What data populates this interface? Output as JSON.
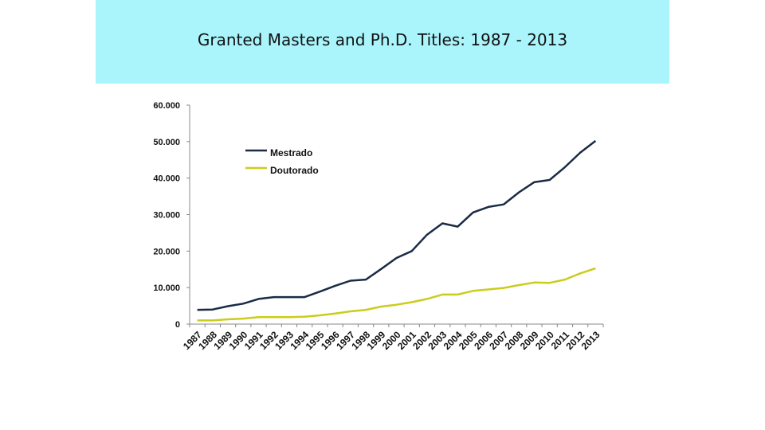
{
  "title": "Granted Masters and Ph.D. Titles: 1987 - 2013",
  "colors": {
    "title_band": "#aaf4fb",
    "mestrado": "#1a2b45",
    "doutorado": "#cccc1e",
    "axis": "#888888"
  },
  "chart_data": {
    "type": "line",
    "title": "Granted Masters and Ph.D. Titles: 1987 - 2013",
    "xlabel": "",
    "ylabel": "",
    "ylim": [
      0,
      60000
    ],
    "yticks": [
      0,
      10000,
      20000,
      30000,
      40000,
      50000,
      60000
    ],
    "ytick_labels": [
      "0",
      "10.000",
      "20.000",
      "30.000",
      "40.000",
      "50.000",
      "60.000"
    ],
    "grid": false,
    "legend_position": "top-left",
    "categories": [
      "1987",
      "1988",
      "1989",
      "1990",
      "1991",
      "1992",
      "1993",
      "1994",
      "1995",
      "1996",
      "1997",
      "1998",
      "1999",
      "2000",
      "2001",
      "2002",
      "2003",
      "2004",
      "2005",
      "2006",
      "2007",
      "2008",
      "2009",
      "2010",
      "2011",
      "2012",
      "2013"
    ],
    "series": [
      {
        "name": "Mestrado",
        "color": "#1a2b45",
        "values": [
          3900,
          4000,
          4900,
          5600,
          6900,
          7400,
          7400,
          7400,
          8900,
          10500,
          11900,
          12200,
          15100,
          18100,
          20000,
          24500,
          27600,
          26700,
          30600,
          32100,
          32800,
          36100,
          38900,
          39500,
          43000,
          47000,
          50200
        ]
      },
      {
        "name": "Doutorado",
        "color": "#cccc1e",
        "values": [
          1000,
          1000,
          1300,
          1500,
          1900,
          1900,
          1900,
          2000,
          2400,
          2900,
          3500,
          3900,
          4800,
          5300,
          6000,
          6900,
          8100,
          8100,
          9100,
          9500,
          9900,
          10700,
          11400,
          11300,
          12200,
          13900,
          15300
        ]
      }
    ]
  }
}
